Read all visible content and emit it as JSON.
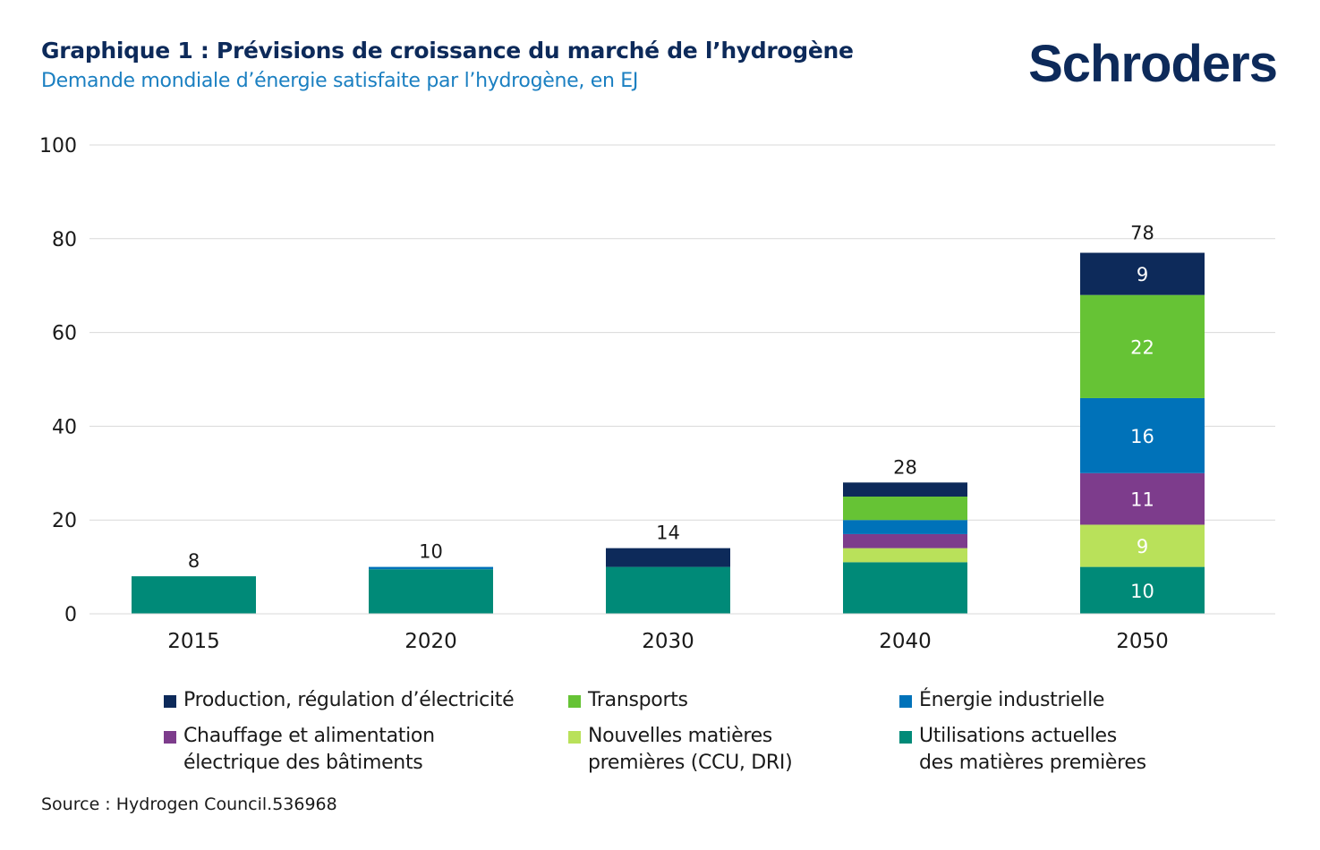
{
  "header": {
    "title": "Graphique 1 : Prévisions de croissance du marché de l’hydrogène",
    "subtitle": "Demande mondiale d’énergie satisfaite par l’hydrogène, en EJ",
    "logo": "Schroders"
  },
  "source": "Source : Hydrogen Council.536968",
  "chart_data": {
    "type": "bar",
    "stacked": true,
    "categories": [
      "2015",
      "2020",
      "2030",
      "2040",
      "2050"
    ],
    "totals": [
      8,
      10,
      14,
      28,
      78
    ],
    "ylim": [
      0,
      100
    ],
    "yticks": [
      0,
      20,
      40,
      60,
      80,
      100
    ],
    "grid": true,
    "legend_position": "bottom",
    "series": [
      {
        "name": "Utilisations actuelles des matières premières",
        "legend": "Utilisations actuelles\ndes matières premières",
        "color": "#008a78",
        "values": [
          8,
          9.5,
          10,
          11,
          10
        ],
        "labels": [
          "",
          "",
          "",
          "",
          "10"
        ]
      },
      {
        "name": "Nouvelles matières premières (CCU, DRI)",
        "legend": "Nouvelles matières\npremières (CCU, DRI)",
        "color": "#b9e15a",
        "values": [
          0,
          0,
          0,
          3,
          9
        ],
        "labels": [
          "",
          "",
          "",
          "",
          "9"
        ]
      },
      {
        "name": "Chauffage et alimentation électrique des bâtiments",
        "legend": "Chauffage et alimentation\nélectrique des bâtiments",
        "color": "#7d3c8c",
        "values": [
          0,
          0,
          0,
          3,
          11
        ],
        "labels": [
          "",
          "",
          "",
          "",
          "11"
        ]
      },
      {
        "name": "Énergie industrielle",
        "legend": "Énergie industrielle",
        "color": "#0072b9",
        "values": [
          0,
          0.5,
          0,
          3,
          16
        ],
        "labels": [
          "",
          "",
          "",
          "",
          "16"
        ]
      },
      {
        "name": "Transports",
        "legend": "Transports",
        "color": "#66c335",
        "values": [
          0,
          0,
          0,
          5,
          22
        ],
        "labels": [
          "",
          "",
          "",
          "",
          "22"
        ]
      },
      {
        "name": "Production, régulation d’électricité",
        "legend": "Production, régulation d’électricité",
        "color": "#0d2a5a",
        "values": [
          0,
          0,
          4,
          3,
          9
        ],
        "labels": [
          "",
          "",
          "",
          "",
          "9"
        ]
      }
    ],
    "legend_order": [
      5,
      4,
      3,
      2,
      1,
      0
    ]
  }
}
